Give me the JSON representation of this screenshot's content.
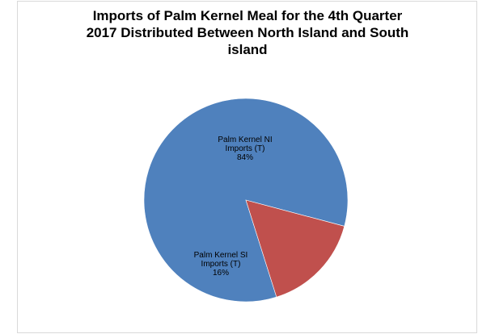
{
  "chart_data": {
    "type": "pie",
    "title_lines": [
      "Imports of Palm Kernel Meal for the 4th Quarter",
      "2017 Distributed Between North Island and South",
      "island"
    ],
    "slices": [
      {
        "label_lines": [
          "Palm Kernel NI",
          "Imports (T)"
        ],
        "percent_label": "84%",
        "value": 84,
        "color": "#4f81bd"
      },
      {
        "label_lines": [
          "Palm Kernel SI",
          "Imports (T)"
        ],
        "percent_label": "16%",
        "value": 16,
        "color": "#c0504d"
      }
    ],
    "legend": "none"
  }
}
